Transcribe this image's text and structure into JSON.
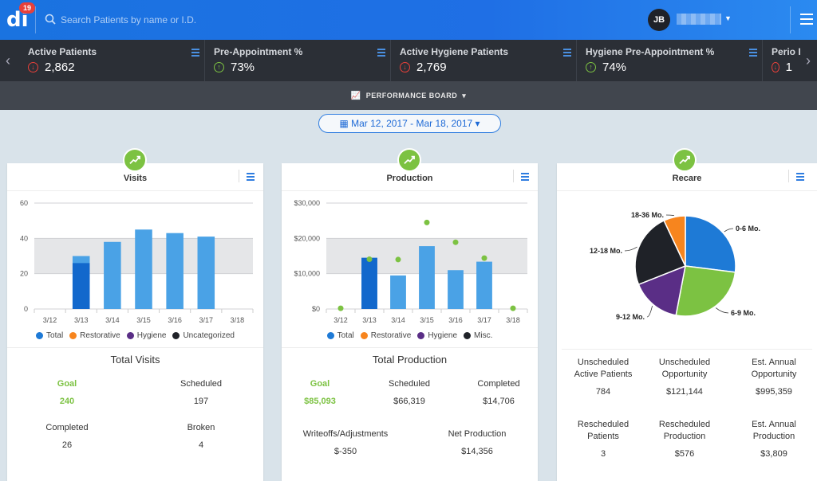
{
  "app": {
    "logo_text": "di",
    "notification_count": "19"
  },
  "search": {
    "placeholder": "Search Patients by name or I.D."
  },
  "user": {
    "initials": "JB"
  },
  "kpis": [
    {
      "title": "Active Patients",
      "value": "2,862",
      "direction": "down"
    },
    {
      "title": "Pre-Appointment %",
      "value": "73%",
      "direction": "up"
    },
    {
      "title": "Active Hygiene Patients",
      "value": "2,769",
      "direction": "down"
    },
    {
      "title": "Hygiene Pre-Appointment %",
      "value": "74%",
      "direction": "up"
    },
    {
      "title": "Perio I",
      "value": "1",
      "direction": "down"
    }
  ],
  "performance_board": {
    "label": "PERFORMANCE BOARD"
  },
  "date_range": {
    "label": "Mar 12, 2017 - Mar 18, 2017"
  },
  "colors": {
    "accent": "#2f7de0",
    "goal_green": "#7cc242",
    "total": "#1e7ad6",
    "restorative": "#f7851e",
    "hygiene": "#5a2e86",
    "uncategorized": "#1f2228"
  },
  "visits": {
    "title": "Visits",
    "legend": [
      "Total",
      "Restorative",
      "Hygiene",
      "Uncategorized"
    ],
    "section_title": "Total Visits",
    "goal_label": "Goal",
    "goal_value": "240",
    "scheduled_label": "Scheduled",
    "scheduled_value": "197",
    "completed_label": "Completed",
    "completed_value": "26",
    "broken_label": "Broken",
    "broken_value": "4"
  },
  "production": {
    "title": "Production",
    "legend": [
      "Total",
      "Restorative",
      "Hygiene",
      "Misc."
    ],
    "section_title": "Total Production",
    "goal_label": "Goal",
    "goal_value": "$85,093",
    "scheduled_label": "Scheduled",
    "scheduled_value": "$66,319",
    "completed_label": "Completed",
    "completed_value": "$14,706",
    "writeoffs_label": "Writeoffs/Adjustments",
    "writeoffs_value": "$-350",
    "net_label": "Net Production",
    "net_value": "$14,356"
  },
  "recare": {
    "title": "Recare",
    "stats": [
      {
        "label_1": "Unscheduled",
        "label_2": "Active Patients",
        "value": "784"
      },
      {
        "label_1": "Unscheduled",
        "label_2": "Opportunity",
        "value": "$121,144"
      },
      {
        "label_1": "Est. Annual",
        "label_2": "Opportunity",
        "value": "$995,359"
      },
      {
        "label_1": "Rescheduled",
        "label_2": "Patients",
        "value": "3"
      },
      {
        "label_1": "Rescheduled",
        "label_2": "Production",
        "value": "$576"
      },
      {
        "label_1": "Est. Annual",
        "label_2": "Production",
        "value": "$3,809"
      }
    ]
  },
  "chart_data": [
    {
      "type": "bar",
      "title": "Visits",
      "categories": [
        "3/12",
        "3/13",
        "3/14",
        "3/15",
        "3/16",
        "3/17",
        "3/18"
      ],
      "ylim": [
        0,
        60
      ],
      "yticks": [
        "0",
        "20",
        "40",
        "60"
      ],
      "series": [
        {
          "name": "Total",
          "values": [
            0,
            30,
            38,
            45,
            43,
            41,
            0
          ]
        },
        {
          "name": "Completed",
          "values": [
            0,
            26,
            0,
            0,
            0,
            0,
            0
          ]
        }
      ],
      "grid": true,
      "legend_position": "bottom"
    },
    {
      "type": "bar",
      "title": "Production",
      "categories": [
        "3/12",
        "3/13",
        "3/14",
        "3/15",
        "3/16",
        "3/17",
        "3/18"
      ],
      "ylim": [
        0,
        30000
      ],
      "yticks": [
        "$0",
        "$10,000",
        "$20,000",
        "$30,000"
      ],
      "series": [
        {
          "name": "Total",
          "values": [
            0,
            14500,
            9500,
            17800,
            11000,
            13400,
            0
          ]
        }
      ],
      "goal_points": [
        200,
        14100,
        14000,
        24500,
        18900,
        14400,
        200
      ],
      "grid": true,
      "legend_position": "bottom"
    },
    {
      "type": "pie",
      "title": "Recare",
      "labels": [
        "0-6 Mo.",
        "6-9 Mo.",
        "9-12 Mo.",
        "12-18 Mo.",
        "18-36 Mo."
      ],
      "values": [
        27,
        26,
        16,
        24,
        7
      ],
      "colors": [
        "#1e7ad6",
        "#7cc242",
        "#5a2e86",
        "#1f2228",
        "#f7851e"
      ]
    }
  ]
}
